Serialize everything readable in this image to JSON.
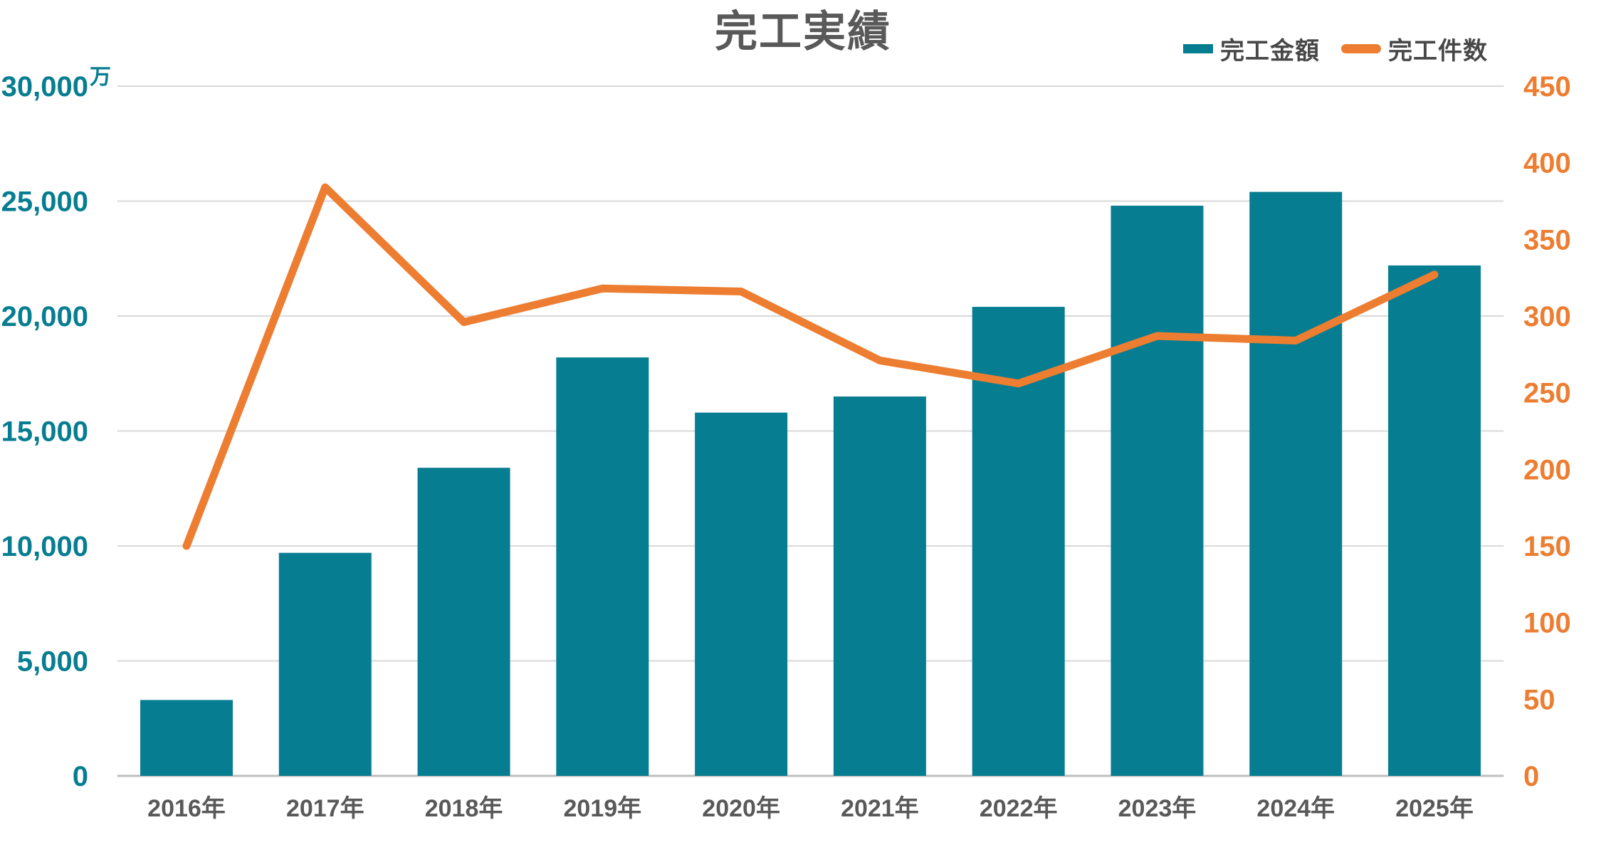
{
  "title": "完工実績",
  "legend": [
    {
      "label": "完工金額",
      "type": "bar",
      "color": "#077d91"
    },
    {
      "label": "完工件数",
      "type": "line",
      "color": "#ed7d31"
    }
  ],
  "left_axis": {
    "unit": "万",
    "color": "#077d91",
    "ticks": [
      "0",
      "5,000",
      "10,000",
      "15,000",
      "20,000",
      "25,000",
      "30,000"
    ],
    "min": 0,
    "max": 30000
  },
  "right_axis": {
    "color": "#ed7d31",
    "ticks": [
      "0",
      "50",
      "100",
      "150",
      "200",
      "250",
      "300",
      "350",
      "400",
      "450"
    ],
    "min": 0,
    "max": 450
  },
  "chart_data": {
    "type": "combo-bar-line",
    "title": "完工実績",
    "categories": [
      "2016年",
      "2017年",
      "2018年",
      "2019年",
      "2020年",
      "2021年",
      "2022年",
      "2023年",
      "2024年",
      "2025年"
    ],
    "series": [
      {
        "name": "完工金額",
        "type": "bar",
        "axis": "left",
        "color": "#077d91",
        "values": [
          3300,
          9700,
          13400,
          18200,
          15800,
          16500,
          20400,
          24800,
          25400,
          22200
        ]
      },
      {
        "name": "完工件数",
        "type": "line",
        "axis": "right",
        "color": "#ed7d31",
        "values": [
          150,
          384,
          296,
          318,
          316,
          271,
          256,
          287,
          284,
          327
        ]
      }
    ],
    "left_ylim": [
      0,
      30000
    ],
    "right_ylim": [
      0,
      450
    ],
    "grid": true,
    "legend_position": "top-right",
    "gridline_color": "#d9d9d9",
    "axisline_color": "#bfbfbf",
    "text_color": "#595959"
  }
}
